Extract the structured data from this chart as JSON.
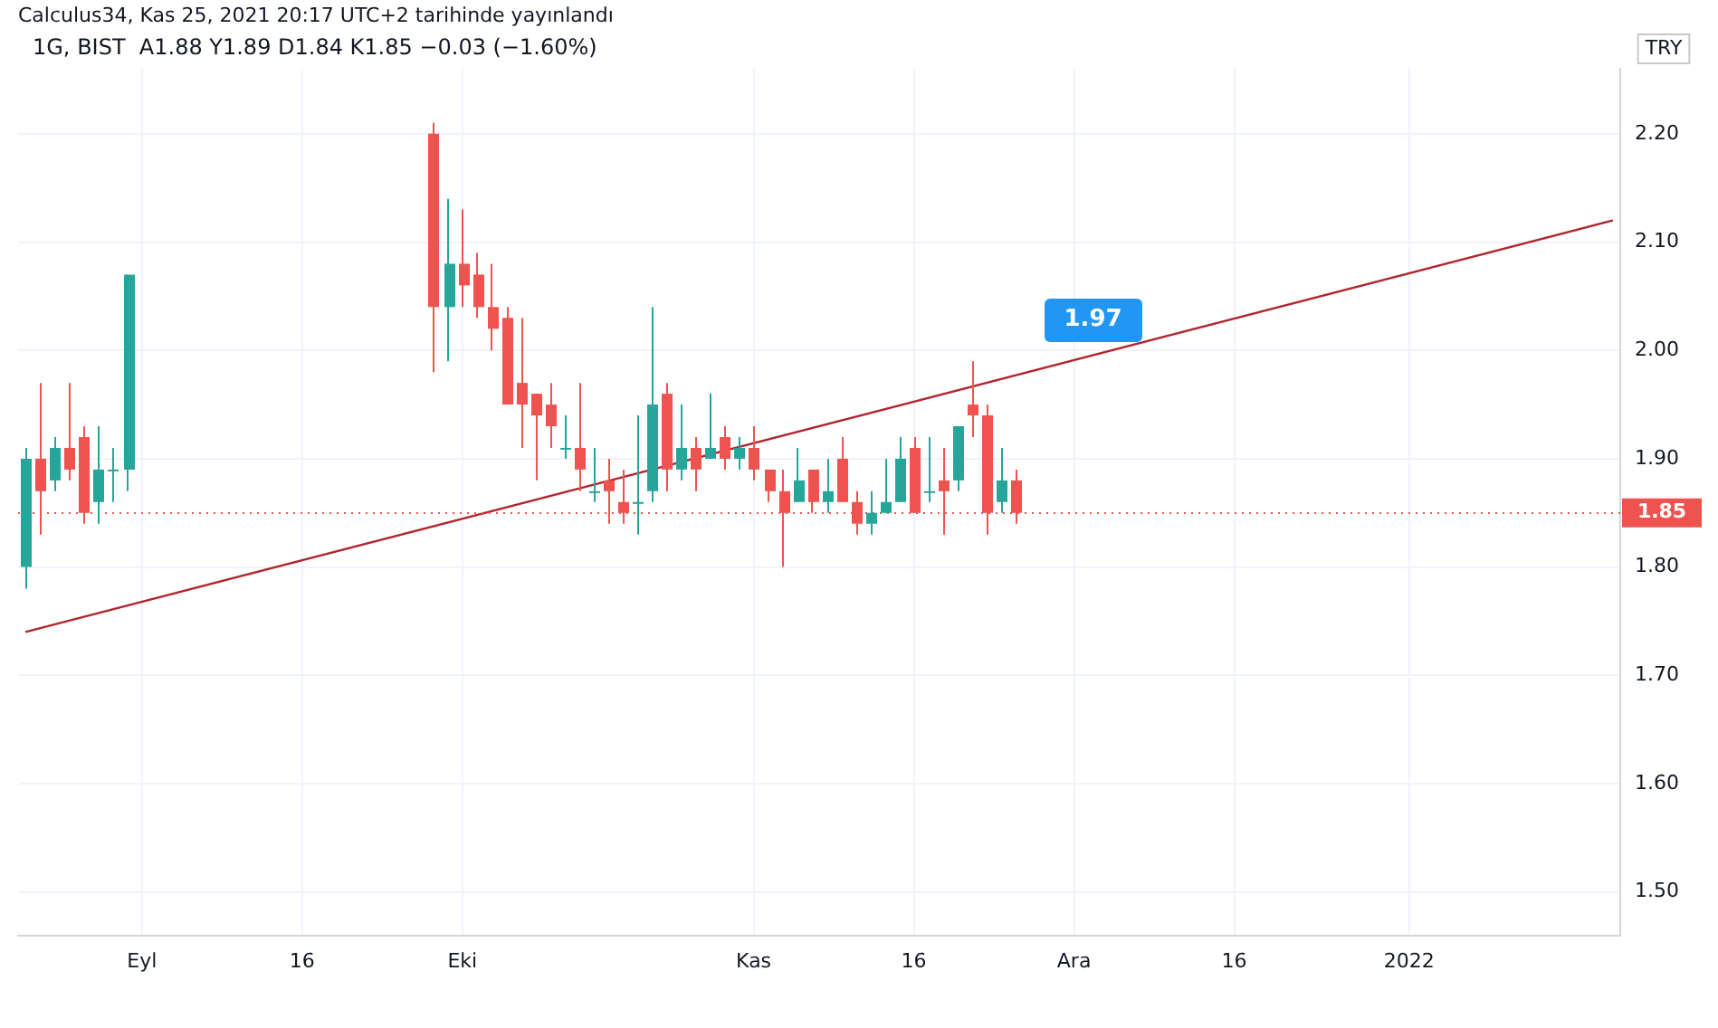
{
  "chart_data": {
    "type": "candlestick",
    "title": "1G, BIST  A1.88 Y1.89 D1.84 K1.85 −0.03 (−1.60%)",
    "ylabel": "TRY",
    "annotations": [
      "Calculus34, Kas 25, 2021 20:17 UTC+2 tarihinde yayınlandı",
      "1.97"
    ],
    "categories": [
      null,
      null,
      null,
      null,
      null,
      null,
      null,
      null,
      "Eyl",
      null,
      null,
      null,
      null,
      null,
      null,
      null,
      null,
      null,
      null,
      "16",
      null,
      null,
      null,
      null,
      null,
      null,
      null,
      null,
      null,
      null,
      "Eki",
      null,
      null,
      null,
      null,
      null,
      null,
      null,
      null,
      null,
      null,
      null,
      null,
      null,
      null,
      null,
      null,
      null,
      null,
      null,
      "Kas",
      null,
      null,
      null,
      null,
      null,
      null,
      null,
      null,
      null,
      null,
      "16",
      null,
      null,
      null,
      null,
      null,
      null,
      null,
      null,
      null,
      null,
      "Ara",
      null,
      null,
      null,
      null,
      null,
      null,
      null,
      null,
      null,
      null,
      "16",
      null,
      null,
      null,
      null,
      null,
      null,
      null,
      null,
      null,
      null,
      null,
      "2022",
      null,
      null,
      null,
      null,
      null,
      null,
      null,
      null,
      null,
      null,
      null,
      null,
      null,
      null
    ],
    "ohlc": [
      [
        1.8,
        1.91,
        1.78,
        1.9
      ],
      [
        1.9,
        1.97,
        1.83,
        1.87
      ],
      [
        1.88,
        1.92,
        1.87,
        1.91
      ],
      [
        1.91,
        1.97,
        1.88,
        1.89
      ],
      [
        1.92,
        1.93,
        1.84,
        1.85
      ],
      [
        1.86,
        1.93,
        1.84,
        1.89
      ],
      [
        1.89,
        1.91,
        1.86,
        1.89
      ],
      [
        1.89,
        2.07,
        1.87,
        2.07
      ],
      null,
      null,
      null,
      null,
      null,
      null,
      null,
      null,
      null,
      null,
      null,
      null,
      null,
      null,
      null,
      null,
      null,
      null,
      null,
      null,
      [
        2.2,
        2.21,
        1.98,
        2.04
      ],
      [
        2.04,
        2.14,
        1.99,
        2.08
      ],
      [
        2.08,
        2.13,
        2.04,
        2.06
      ],
      [
        2.07,
        2.09,
        2.03,
        2.04
      ],
      [
        2.04,
        2.08,
        2.0,
        2.02
      ],
      [
        2.03,
        2.04,
        1.95,
        1.95
      ],
      [
        1.97,
        2.03,
        1.91,
        1.95
      ],
      [
        1.96,
        1.96,
        1.88,
        1.94
      ],
      [
        1.95,
        1.97,
        1.91,
        1.93
      ],
      [
        1.91,
        1.94,
        1.9,
        1.91
      ],
      [
        1.91,
        1.97,
        1.87,
        1.89
      ],
      [
        1.87,
        1.91,
        1.86,
        1.87
      ],
      [
        1.88,
        1.9,
        1.84,
        1.87
      ],
      [
        1.86,
        1.89,
        1.84,
        1.85
      ],
      [
        1.86,
        1.94,
        1.83,
        1.86
      ],
      [
        1.87,
        2.04,
        1.86,
        1.95
      ],
      [
        1.96,
        1.97,
        1.87,
        1.89
      ],
      [
        1.89,
        1.95,
        1.88,
        1.91
      ],
      [
        1.91,
        1.92,
        1.87,
        1.89
      ],
      [
        1.9,
        1.96,
        1.9,
        1.91
      ],
      [
        1.92,
        1.93,
        1.89,
        1.9
      ],
      [
        1.9,
        1.92,
        1.89,
        1.91
      ],
      [
        1.91,
        1.93,
        1.88,
        1.89
      ],
      [
        1.89,
        1.89,
        1.86,
        1.87
      ],
      [
        1.87,
        1.89,
        1.8,
        1.85
      ],
      [
        1.86,
        1.91,
        1.86,
        1.88
      ],
      [
        1.89,
        1.89,
        1.85,
        1.86
      ],
      [
        1.86,
        1.9,
        1.85,
        1.87
      ],
      [
        1.9,
        1.92,
        1.86,
        1.86
      ],
      [
        1.86,
        1.87,
        1.83,
        1.84
      ],
      [
        1.84,
        1.87,
        1.83,
        1.85
      ],
      [
        1.85,
        1.9,
        1.85,
        1.86
      ],
      [
        1.86,
        1.92,
        1.86,
        1.9
      ],
      [
        1.91,
        1.92,
        1.85,
        1.85
      ],
      [
        1.87,
        1.92,
        1.86,
        1.87
      ],
      [
        1.88,
        1.91,
        1.83,
        1.87
      ],
      [
        1.88,
        1.93,
        1.87,
        1.93
      ],
      [
        1.95,
        1.99,
        1.92,
        1.94
      ],
      [
        1.94,
        1.95,
        1.83,
        1.85
      ],
      [
        1.86,
        1.91,
        1.85,
        1.88
      ],
      [
        1.88,
        1.89,
        1.84,
        1.85
      ],
      null,
      null,
      null,
      null,
      null,
      null,
      null,
      null,
      null,
      null,
      null,
      null,
      null,
      null,
      null,
      null,
      null,
      null,
      null,
      null,
      null,
      null,
      null,
      null,
      null,
      null,
      null,
      null,
      null,
      null,
      null,
      null,
      null,
      null,
      null,
      null,
      null,
      null,
      null,
      null,
      null
    ],
    "series": [
      {
        "type": "line",
        "color": "#b2262e",
        "values": [
          1.74,
          null,
          null,
          null,
          null,
          null,
          null,
          null,
          null,
          null,
          null,
          null,
          null,
          null,
          null,
          null,
          null,
          null,
          null,
          null,
          null,
          null,
          null,
          null,
          null,
          null,
          null,
          null,
          null,
          null,
          null,
          null,
          null,
          null,
          null,
          null,
          null,
          null,
          null,
          null,
          null,
          null,
          null,
          null,
          null,
          null,
          null,
          null,
          null,
          null,
          null,
          null,
          null,
          null,
          null,
          null,
          null,
          null,
          null,
          null,
          null,
          null,
          null,
          null,
          null,
          null,
          null,
          null,
          null,
          null,
          null,
          null,
          null,
          null,
          null,
          null,
          null,
          null,
          null,
          null,
          null,
          null,
          null,
          null,
          null,
          null,
          null,
          null,
          null,
          null,
          null,
          null,
          null,
          null,
          null,
          null,
          null,
          null,
          null,
          null,
          null,
          null,
          null,
          null,
          null,
          null,
          null,
          null,
          null,
          2.12
        ]
      }
    ],
    "ylim": [
      1.46,
      2.26
    ],
    "yticks": [
      {
        "value": 1.5,
        "label": "1.50"
      },
      {
        "value": 1.6,
        "label": "1.60"
      },
      {
        "value": 1.7,
        "label": "1.70"
      },
      {
        "value": 1.8,
        "label": "1.80"
      },
      {
        "value": 1.9,
        "label": "1.90"
      },
      {
        "value": 2.0,
        "label": "2.00"
      },
      {
        "value": 2.1,
        "label": "2.10"
      },
      {
        "value": 2.2,
        "label": "2.20"
      }
    ],
    "ref_lines": [
      {
        "axis": "y",
        "value": 1.85,
        "label": "1.85",
        "color": "#ef5350",
        "line_style": "dotted"
      }
    ],
    "grid": true
  }
}
